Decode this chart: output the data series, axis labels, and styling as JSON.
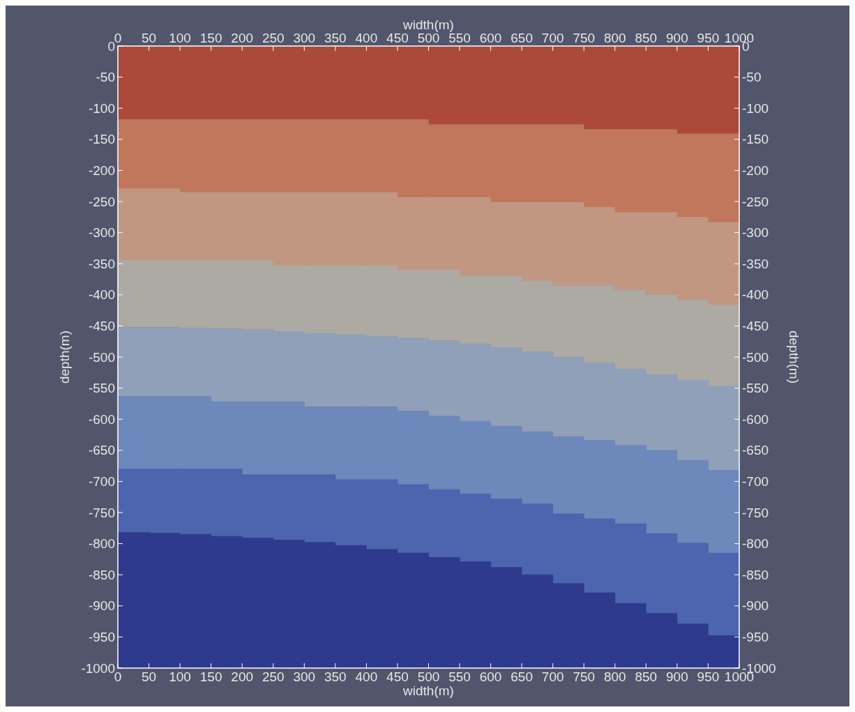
{
  "chart_data": {
    "type": "area",
    "stacked": true,
    "xlabel": "width(m)",
    "x2label": "width(m)",
    "ylabel": "depth(m)",
    "y2label": "depth(m)",
    "x": [
      0,
      50,
      100,
      150,
      200,
      250,
      300,
      350,
      400,
      450,
      500,
      550,
      600,
      650,
      700,
      750,
      800,
      850,
      900,
      950,
      1000
    ],
    "xlim": [
      0,
      1000
    ],
    "xticks": [
      0,
      50,
      100,
      150,
      200,
      250,
      300,
      350,
      400,
      450,
      500,
      550,
      600,
      650,
      700,
      750,
      800,
      850,
      900,
      950,
      1000
    ],
    "x2lim": [
      0,
      1000
    ],
    "x2ticks": [
      0,
      50,
      100,
      150,
      200,
      250,
      300,
      350,
      400,
      450,
      500,
      550,
      600,
      650,
      700,
      750,
      800,
      850,
      900,
      950,
      1000
    ],
    "ylim": [
      -1000,
      0
    ],
    "yticks": [
      0,
      -50,
      -100,
      -150,
      -200,
      -250,
      -300,
      -350,
      -400,
      -450,
      -500,
      -550,
      -600,
      -650,
      -700,
      -750,
      -800,
      -850,
      -900,
      -950,
      -1000
    ],
    "y2lim": [
      -1000,
      0
    ],
    "y2ticks": [
      0,
      -50,
      -100,
      -150,
      -200,
      -250,
      -300,
      -350,
      -400,
      -450,
      -500,
      -550,
      -600,
      -650,
      -700,
      -750,
      -800,
      -850,
      -900,
      -950,
      -1000
    ],
    "series": [
      {
        "color": "#ab4a3a",
        "values": [
          -118,
          -118,
          -118,
          -118,
          -118,
          -118,
          -118,
          -118,
          -118,
          -118,
          -126,
          -126,
          -126,
          -126,
          -126,
          -134,
          -134,
          -134,
          -141,
          -141,
          -141
        ]
      },
      {
        "color": "#c0775b",
        "values": [
          -111,
          -111,
          -117,
          -117,
          -117,
          -117,
          -117,
          -117,
          -117,
          -125,
          -117,
          -117,
          -125,
          -125,
          -125,
          -125,
          -133,
          -133,
          -134,
          -142,
          -142
        ]
      },
      {
        "color": "#c19781",
        "values": [
          -115,
          -115,
          -109,
          -109,
          -109,
          -118,
          -118,
          -118,
          -118,
          -117,
          -117,
          -126,
          -118,
          -126,
          -134,
          -126,
          -125,
          -133,
          -133,
          -133,
          -141
        ]
      },
      {
        "color": "#acaaa2",
        "values": [
          -108,
          -108,
          -109,
          -111,
          -112,
          -106,
          -109,
          -111,
          -114,
          -110,
          -114,
          -110,
          -116,
          -115,
          -115,
          -124,
          -127,
          -128,
          -129,
          -131,
          -132
        ]
      },
      {
        "color": "#8fa0b8",
        "values": [
          -111,
          -111,
          -110,
          -117,
          -116,
          -113,
          -118,
          -116,
          -113,
          -117,
          -121,
          -124,
          -126,
          -128,
          -128,
          -125,
          -123,
          -122,
          -129,
          -135,
          -141
        ]
      },
      {
        "color": "#6d88bb",
        "values": [
          -117,
          -117,
          -117,
          -108,
          -117,
          -117,
          -109,
          -117,
          -117,
          -118,
          -118,
          -117,
          -117,
          -116,
          -124,
          -126,
          -126,
          -134,
          -133,
          -133,
          -141
        ]
      },
      {
        "color": "#4c65ae",
        "values": [
          -102,
          -103,
          -105,
          -108,
          -102,
          -105,
          -109,
          -106,
          -112,
          -110,
          -109,
          -109,
          -110,
          -114,
          -112,
          -119,
          -128,
          -128,
          -130,
          -133,
          -125
        ]
      },
      {
        "color": "#2e3a8e",
        "values": [
          -218,
          -217,
          -215,
          -212,
          -209,
          -206,
          -202,
          -197,
          -191,
          -185,
          -178,
          -171,
          -162,
          -150,
          -136,
          -121,
          -104,
          -88,
          -71,
          -52,
          -37
        ]
      }
    ]
  }
}
